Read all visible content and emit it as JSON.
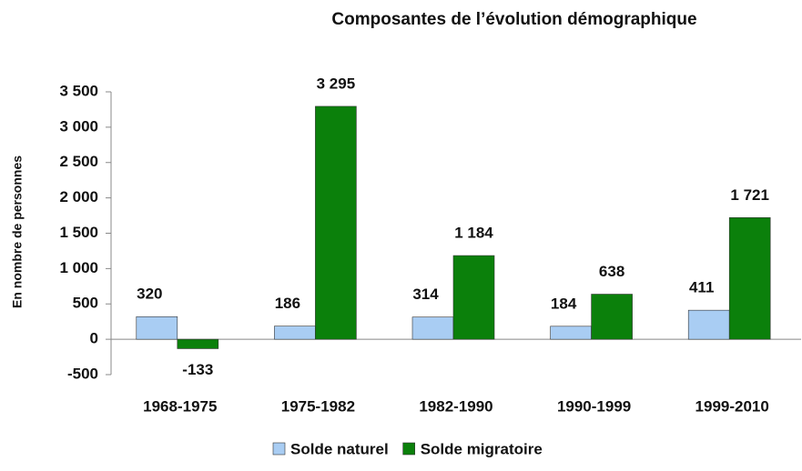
{
  "chart_data": {
    "type": "bar",
    "title": "Composantes de l’évolution démographique",
    "y_label": "En nombre de personnes",
    "categories": [
      "1968-1975",
      "1975-1982",
      "1982-1990",
      "1990-1999",
      "1999-2010"
    ],
    "series": [
      {
        "name": "Solde naturel",
        "color": "#a9cdf3",
        "values": [
          320,
          186,
          314,
          184,
          411
        ],
        "value_labels": [
          "320",
          "186",
          "314",
          "184",
          "411"
        ]
      },
      {
        "name": "Solde migratoire",
        "color": "#0b800b",
        "values": [
          -133,
          3295,
          1184,
          638,
          1721
        ],
        "value_labels": [
          "-133",
          "3 295",
          "1 184",
          "638",
          "1 721"
        ]
      }
    ],
    "ylim": [
      -500,
      3500
    ],
    "yticks": [
      -500,
      0,
      500,
      {
        "value": 1000,
        "label": "1 000"
      },
      {
        "value": 1500,
        "label": "1 500"
      },
      {
        "value": 2000,
        "label": "2 000"
      },
      {
        "value": 2500,
        "label": "2 500"
      },
      {
        "value": 3000,
        "label": "3 000"
      },
      {
        "value": 3500,
        "label": "3 500"
      }
    ],
    "grid": false,
    "legend": "bottom"
  }
}
